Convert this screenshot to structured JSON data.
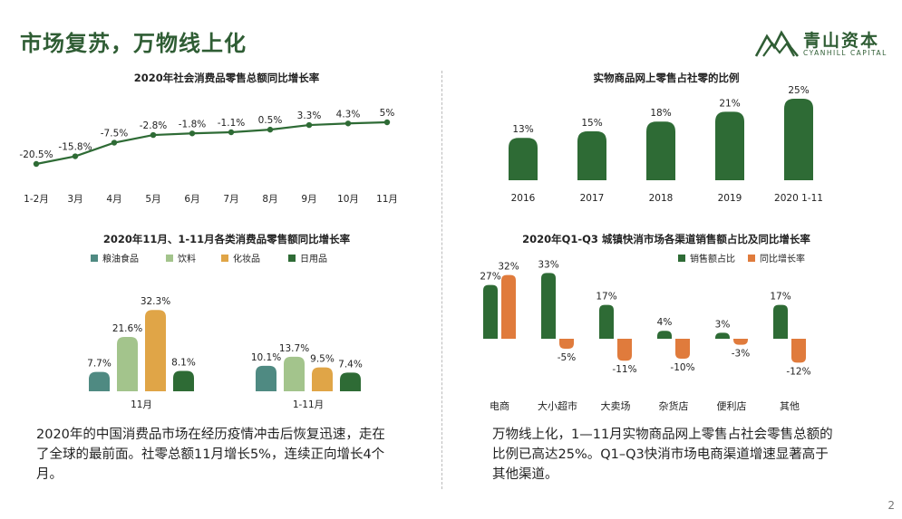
{
  "header": {
    "title": "市场复苏，万物线上化",
    "logo_cn": "青山资本",
    "logo_en": "CYANHILL CAPITAL"
  },
  "chart_data": [
    {
      "type": "line",
      "title": "2020年社会消费品零售总额同比增长率",
      "categories": [
        "1-2月",
        "3月",
        "4月",
        "5月",
        "6月",
        "7月",
        "8月",
        "9月",
        "10月",
        "11月"
      ],
      "values": [
        -20.5,
        -15.8,
        -7.5,
        -2.8,
        -1.8,
        -1.1,
        0.5,
        3.3,
        4.3,
        5
      ],
      "labels": [
        "-20.5%",
        "-15.8%",
        "-7.5%",
        "-2.8%",
        "-1.8%",
        "-1.1%",
        "0.5%",
        "3.3%",
        "4.3%",
        "5%"
      ],
      "color": "#2e6b35"
    },
    {
      "type": "bar",
      "title": "实物商品网上零售占社零的比例",
      "categories": [
        "2016",
        "2017",
        "2018",
        "2019",
        "2020 1-11"
      ],
      "values": [
        13,
        15,
        18,
        21,
        25
      ],
      "labels": [
        "13%",
        "15%",
        "18%",
        "21%",
        "25%"
      ],
      "color": "#2e6b35"
    },
    {
      "type": "bar",
      "title": "2020年11月、1-11月各类消费品零售额同比增长率",
      "categories": [
        "11月",
        "1-11月"
      ],
      "series": [
        {
          "name": "粮油食品",
          "color": "#4f8a82",
          "values": [
            7.7,
            10.1
          ],
          "labels": [
            "7.7%",
            "10.1%"
          ]
        },
        {
          "name": "饮料",
          "color": "#a3c48c",
          "values": [
            21.6,
            13.7
          ],
          "labels": [
            "21.6%",
            "13.7%"
          ]
        },
        {
          "name": "化妆品",
          "color": "#e0a547",
          "values": [
            32.3,
            9.5
          ],
          "labels": [
            "32.3%",
            "9.5%"
          ]
        },
        {
          "name": "日用品",
          "color": "#2e6b35",
          "values": [
            8.1,
            7.4
          ],
          "labels": [
            "8.1%",
            "7.4%"
          ]
        }
      ]
    },
    {
      "type": "bar",
      "title": "2020年Q1-Q3 城镇快消市场各渠道销售额占比及同比增长率",
      "categories": [
        "电商",
        "大小超市",
        "大卖场",
        "杂货店",
        "便利店",
        "其他"
      ],
      "series": [
        {
          "name": "销售额占比",
          "color": "#2e6b35",
          "values": [
            27,
            33,
            17,
            4,
            3,
            17
          ],
          "labels": [
            "27%",
            "33%",
            "17%",
            "4%",
            "3%",
            "17%"
          ]
        },
        {
          "name": "同比增长率",
          "color": "#e07b3c",
          "values": [
            32,
            -5,
            -11,
            -10,
            -3,
            -12
          ],
          "labels": [
            "32%",
            "-5%",
            "-11%",
            "-10%",
            "-3%",
            "-12%"
          ]
        }
      ]
    }
  ],
  "text": {
    "left_paragraph": "2020年的中国消费品市场在经历疫情冲击后恢复迅速，走在了全球的最前面。社零总额11月增长5%，连续正向增长4个月。",
    "right_paragraph": "万物线上化，1—11月实物商品网上零售占社会零售总额的比例已高达25%。Q1–Q3快消市场电商渠道增速显著高于其他渠道。"
  },
  "footer": {
    "page_number": "2"
  }
}
